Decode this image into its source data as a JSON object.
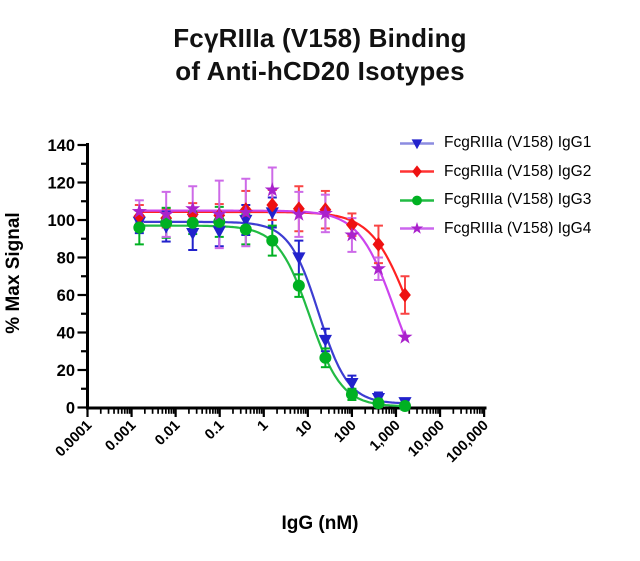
{
  "title": {
    "line1": "FcγRIIIa (V158) Binding",
    "line2": "of Anti-hCD20 Isotypes"
  },
  "chart_data": {
    "type": "line",
    "subtype": "dose-response-curves-with-error-bars",
    "x_scale": "log",
    "xlabel": "IgG (nM)",
    "ylabel": "% Max Signal",
    "ylim": [
      0,
      140
    ],
    "y_tick_step": 20,
    "y_minor_step": 10,
    "y_tick_labels": [
      "0",
      "20",
      "40",
      "60",
      "80",
      "100",
      "120",
      "140"
    ],
    "x_ticks": [
      0.0001,
      0.001,
      0.01,
      0.1,
      1,
      10,
      100,
      1000,
      10000,
      100000
    ],
    "x_tick_labels": [
      "0.0001",
      "0.001",
      "0.01",
      "0.1",
      "1",
      "10",
      "100",
      "1,000",
      "10,000",
      "100,000"
    ],
    "grid": false,
    "legend_position": "top-right",
    "x_nM": [
      0.0015,
      0.0061,
      0.0244,
      0.0977,
      0.391,
      1.56,
      6.25,
      25,
      100,
      400,
      1600
    ],
    "series": [
      {
        "name": "FcgRIIIa (V158) IgG1",
        "marker": "triangle-down",
        "color": "#2222cc",
        "curve_color": "#3d3dd2",
        "line_color": "#8c8ce0",
        "error_color": "#2222cc",
        "values": [
          99,
          96.5,
          93,
          94,
          100,
          104,
          80,
          36,
          13,
          5,
          2.8
        ],
        "errors": [
          6,
          8,
          9,
          8,
          8,
          8,
          9,
          6,
          4,
          3,
          2
        ],
        "fit": {
          "top": 99,
          "bottom": 2,
          "ec50": 17.5,
          "hill": 1.3
        }
      },
      {
        "name": "FcgRIIIa (V158) IgG2",
        "marker": "diamond",
        "color": "#ee1111",
        "curve_color": "#ff2222",
        "line_color": "#ff3333",
        "error_color": "#f94444",
        "values": [
          102,
          101,
          103,
          102.5,
          105.5,
          108,
          106,
          105.5,
          97.5,
          87,
          60
        ],
        "errors": [
          6,
          5,
          6,
          6,
          10,
          8,
          12,
          10,
          6,
          10,
          10
        ],
        "fit": {
          "top": 104.3,
          "bottom": 0,
          "ec50": 2100,
          "hill": 1.0
        }
      },
      {
        "name": "FcgRIIIa (V158) IgG3",
        "marker": "circle",
        "color": "#00b122",
        "curve_color": "#22bb44",
        "line_color": "#22bb44",
        "error_color": "#00b122",
        "values": [
          96,
          98.5,
          98.5,
          99,
          95,
          89,
          65,
          26.5,
          7,
          2.3,
          0.8
        ],
        "errors": [
          9,
          8,
          6,
          8,
          8,
          8,
          6,
          5,
          3,
          2,
          2
        ],
        "fit": {
          "top": 97,
          "bottom": 0.5,
          "ec50": 11,
          "hill": 1.2
        }
      },
      {
        "name": "FcgRIIIa (V158) IgG4",
        "marker": "star",
        "color": "#aa22cc",
        "curve_color": "#cc44ee",
        "line_color": "#cc66ee",
        "error_color": "#cd6ae8",
        "values": [
          104.5,
          103,
          106,
          103,
          104,
          116,
          103,
          103.5,
          92,
          74,
          37.5
        ],
        "errors": [
          6,
          12,
          12,
          18,
          18,
          12,
          12,
          10,
          9,
          6,
          0
        ],
        "fit": {
          "top": 105,
          "bottom": 0,
          "ec50": 925,
          "hill": 1.07
        }
      }
    ]
  }
}
